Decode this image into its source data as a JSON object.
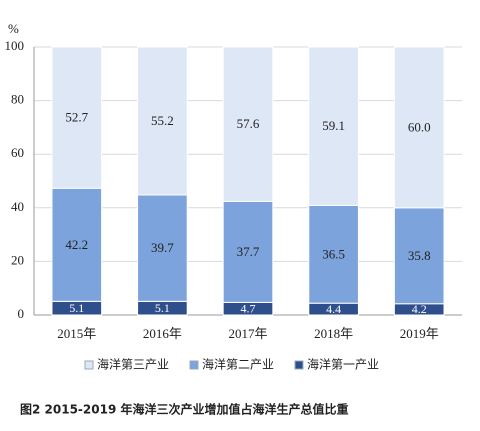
{
  "chart_data": {
    "type": "stacked-bar",
    "y_label": "%",
    "caption": "图2  2015-2019 年海洋三次产业增加值占海洋生产总值比重",
    "categories": [
      "2015年",
      "2016年",
      "2017年",
      "2018年",
      "2019年"
    ],
    "series": [
      {
        "name": "海洋第一产业",
        "color": "#2f4f8c",
        "values": [
          5.1,
          5.1,
          4.7,
          4.4,
          4.2
        ]
      },
      {
        "name": "海洋第二产业",
        "color": "#7da3dc",
        "values": [
          42.2,
          39.7,
          37.7,
          36.5,
          35.8
        ]
      },
      {
        "name": "海洋第三产业",
        "color": "#dde7f6",
        "values": [
          52.7,
          55.2,
          57.6,
          59.1,
          60.0
        ],
        "value_labels": [
          "52.7",
          "55.2",
          "57.6",
          "59.1",
          "60.0"
        ]
      }
    ],
    "ylim": [
      0,
      100
    ],
    "yticks": [
      0,
      20,
      40,
      60,
      80,
      100
    ],
    "grid": true
  }
}
